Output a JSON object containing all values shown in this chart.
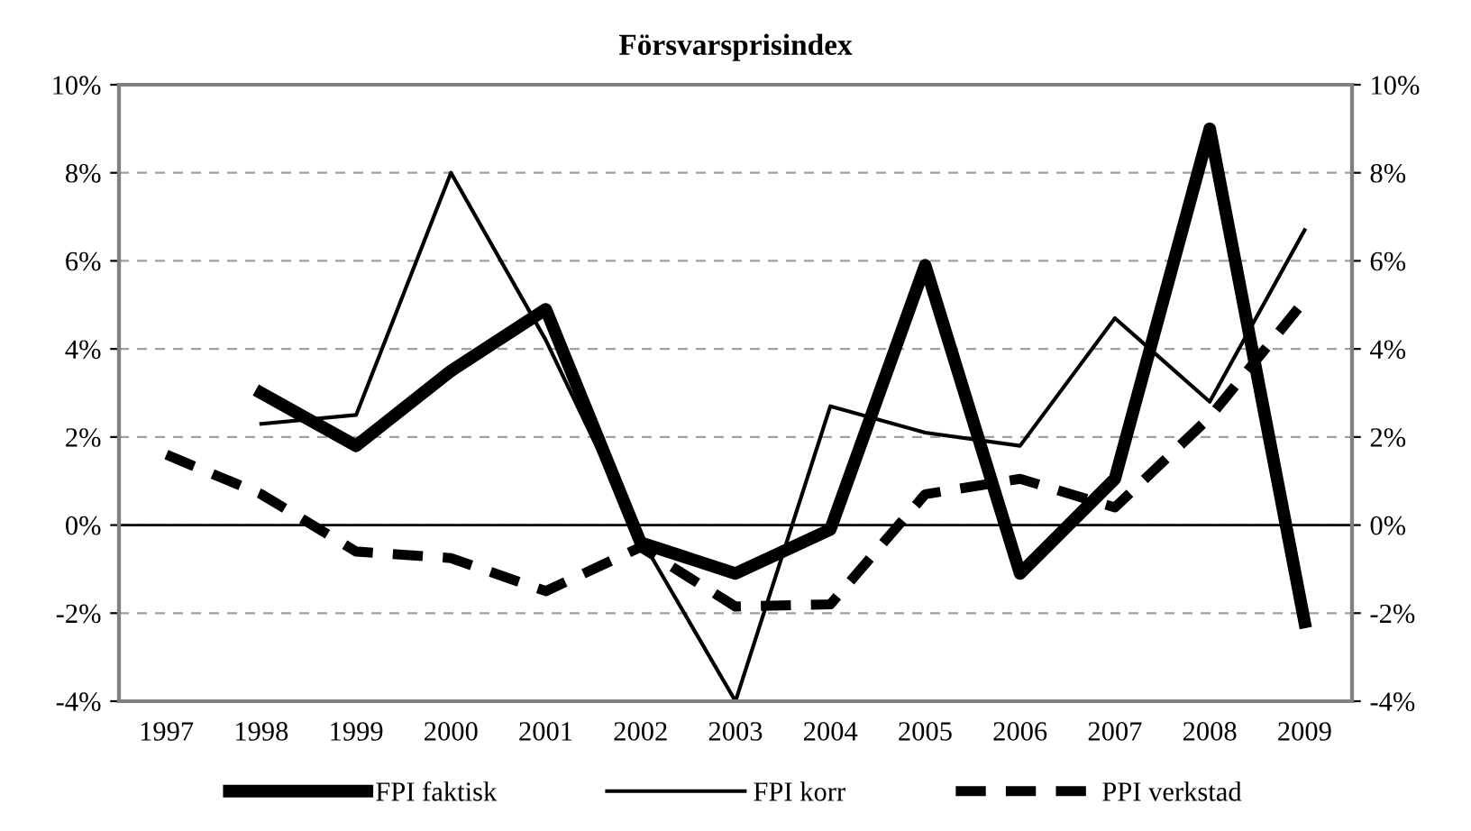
{
  "chart_data": {
    "type": "line",
    "title": "Försvarsprisindex",
    "categories": [
      "1997",
      "1998",
      "1999",
      "2000",
      "2001",
      "2002",
      "2003",
      "2004",
      "2005",
      "2006",
      "2007",
      "2008",
      "2009"
    ],
    "series": [
      {
        "name": "FPI faktisk",
        "color": "#000000",
        "line_style": "solid",
        "values": [
          null,
          3.0,
          1.8,
          3.5,
          4.9,
          -0.4,
          -1.1,
          -0.1,
          5.9,
          -1.1,
          1.05,
          9.0,
          -2.2
        ]
      },
      {
        "name": "FPI korr",
        "color": "#000000",
        "line_style": "solid",
        "values": [
          null,
          2.3,
          2.5,
          8.0,
          4.2,
          -0.3,
          -4.0,
          2.7,
          2.1,
          1.8,
          4.7,
          2.8,
          6.7
        ]
      },
      {
        "name": "PPI verkstad",
        "color": "#000000",
        "line_style": "dashed",
        "values": [
          1.6,
          0.7,
          -0.6,
          -0.75,
          -1.5,
          -0.5,
          -1.85,
          -1.8,
          0.7,
          1.05,
          0.4,
          2.45,
          5.1
        ]
      }
    ],
    "ylim": [
      -4,
      10
    ],
    "yticks": [
      {
        "value": -4,
        "label": "-4%"
      },
      {
        "value": -2,
        "label": "-2%"
      },
      {
        "value": 0,
        "label": "0%"
      },
      {
        "value": 2,
        "label": "2%"
      },
      {
        "value": 4,
        "label": "4%"
      },
      {
        "value": 6,
        "label": "6%"
      },
      {
        "value": 8,
        "label": "8%"
      },
      {
        "value": 10,
        "label": "10%"
      }
    ],
    "y2lim": [
      -4,
      10
    ],
    "y2ticks": [
      {
        "value": -4,
        "label": "-4%"
      },
      {
        "value": -2,
        "label": "-2%"
      },
      {
        "value": 0,
        "label": "0%"
      },
      {
        "value": 2,
        "label": "2%"
      },
      {
        "value": 4,
        "label": "4%"
      },
      {
        "value": 6,
        "label": "6%"
      },
      {
        "value": 8,
        "label": "8%"
      },
      {
        "value": 10,
        "label": "10%"
      }
    ],
    "ref_lines": [
      {
        "axis": "y",
        "value": 0,
        "color": "#000000",
        "line_style": "solid"
      }
    ],
    "grid": "y",
    "legend": "bottom",
    "marker": "none"
  }
}
